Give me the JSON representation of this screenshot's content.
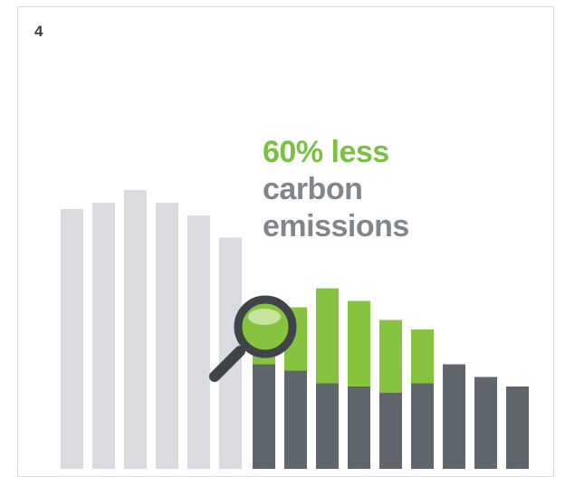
{
  "page": {
    "number": "4"
  },
  "headline": {
    "highlight": "60% less",
    "line2": "carbon",
    "line3": "emissions"
  },
  "graphic": {
    "before_bars": [
      0.82,
      0.84,
      0.88,
      0.84,
      0.8,
      0.73
    ],
    "after_bars": [
      {
        "dark": 0.33,
        "green": 0.19
      },
      {
        "dark": 0.31,
        "green": 0.2
      },
      {
        "dark": 0.27,
        "green": 0.3
      },
      {
        "dark": 0.26,
        "green": 0.27
      },
      {
        "dark": 0.24,
        "green": 0.23
      },
      {
        "dark": 0.27,
        "green": 0.17
      },
      {
        "dark": 0.33,
        "green": 0
      },
      {
        "dark": 0.29,
        "green": 0
      },
      {
        "dark": 0.26,
        "green": 0
      }
    ],
    "colors": {
      "before": "#d9dbe0",
      "dark": "#5f666d",
      "green": "#86c440",
      "magnifier_frame": "#3f4448"
    },
    "icon": "magnifying-glass-icon"
  }
}
